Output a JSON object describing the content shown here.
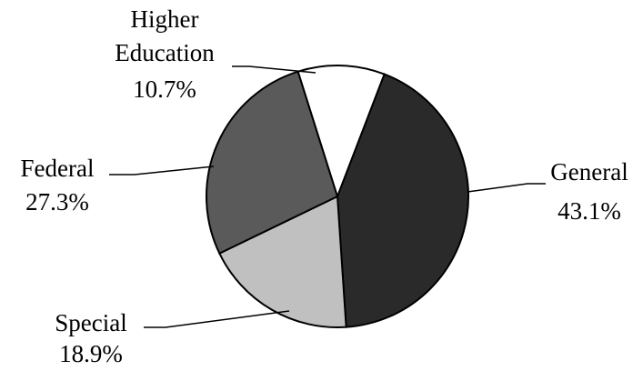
{
  "chart_data": {
    "type": "pie",
    "title": "",
    "slices": [
      {
        "label": "General",
        "value": 43.1,
        "value_label": "43.1%",
        "color": "#2a2a2a"
      },
      {
        "label": "Special",
        "value": 18.9,
        "value_label": "18.9%",
        "color": "#c0c0c0"
      },
      {
        "label": "Federal",
        "value": 27.3,
        "value_label": "27.3%",
        "color": "#5a5a5a"
      },
      {
        "label": "Higher Education",
        "label_lines": [
          "Higher",
          "Education"
        ],
        "value": 10.7,
        "value_label": "10.7%",
        "color": "#ffffff"
      }
    ],
    "direction": "clockwise",
    "legend": "none",
    "label_style": "outside with leader lines"
  }
}
